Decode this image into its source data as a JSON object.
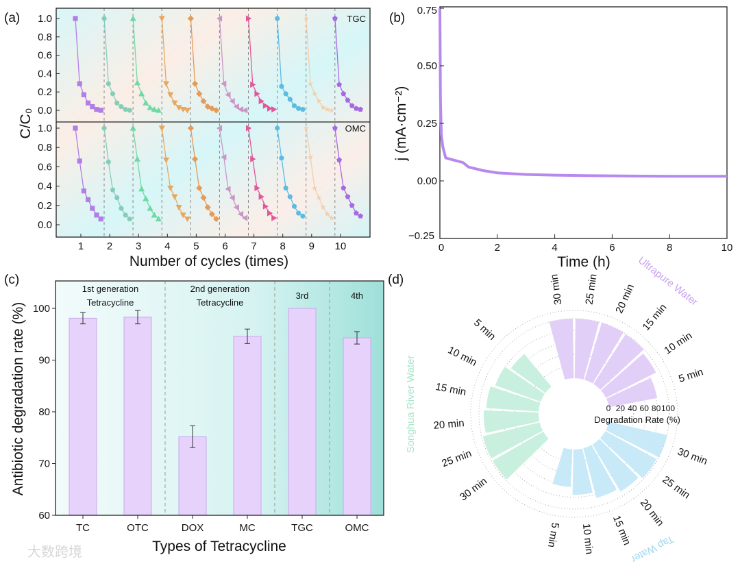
{
  "panels": {
    "a": "(a)",
    "b": "(b)",
    "c": "(c)",
    "d": "(d)"
  },
  "watermark": "大数跨境",
  "colors": {
    "cycles": [
      "#b07ee6",
      "#86cdb9",
      "#6fd8a4",
      "#e7a85e",
      "#e69a55",
      "#c996c6",
      "#e0579a",
      "#5bbbe3",
      "#f2cfa8",
      "#a768e6"
    ],
    "bar_purple": "#e6d2fa",
    "bar_edge": "#c9a8ee",
    "tap": "#c8e9f8",
    "songhua": "#c9f0df",
    "ultrapure": "#e2cff7"
  },
  "chart_data": [
    {
      "type": "line",
      "title": "",
      "xlabel": "Number of cycles (times)",
      "ylabel": "C/C₀",
      "xticks": [
        "1",
        "2",
        "3",
        "4",
        "5",
        "6",
        "7",
        "8",
        "9",
        "10"
      ],
      "yticks": [
        "0.0",
        "0.2",
        "0.4",
        "0.6",
        "0.8",
        "1.0"
      ],
      "ylim": [
        0,
        1.0
      ],
      "markers": [
        "square",
        "circle",
        "triangle-up",
        "triangle-down",
        "diamond",
        "triangle-left",
        "triangle-right",
        "hexagon",
        "star",
        "pentagon"
      ],
      "subplots": [
        {
          "name": "TGC",
          "cycles": [
            [
              1,
              0.29,
              0.17,
              0.08,
              0.04,
              0.01,
              0.0
            ],
            [
              1,
              0.29,
              0.18,
              0.08,
              0.04,
              0.01,
              0.0
            ],
            [
              1,
              0.3,
              0.18,
              0.08,
              0.03,
              0.01,
              0.0
            ],
            [
              1,
              0.29,
              0.17,
              0.08,
              0.03,
              0.01,
              0.0
            ],
            [
              1,
              0.29,
              0.18,
              0.1,
              0.04,
              0.02,
              0.0
            ],
            [
              1,
              0.29,
              0.17,
              0.1,
              0.04,
              0.01,
              0.0
            ],
            [
              1,
              0.28,
              0.18,
              0.1,
              0.05,
              0.02,
              0.01
            ],
            [
              1,
              0.26,
              0.18,
              0.12,
              0.05,
              0.02,
              0.01
            ],
            [
              1,
              0.29,
              0.18,
              0.1,
              0.03,
              0.01,
              0.0
            ],
            [
              1,
              0.28,
              0.18,
              0.11,
              0.05,
              0.02,
              0.01
            ]
          ]
        },
        {
          "name": "OMC",
          "cycles": [
            [
              1,
              0.66,
              0.35,
              0.26,
              0.17,
              0.1,
              0.06
            ],
            [
              1,
              0.65,
              0.36,
              0.28,
              0.17,
              0.1,
              0.06
            ],
            [
              1,
              0.68,
              0.37,
              0.27,
              0.17,
              0.1,
              0.06
            ],
            [
              1,
              0.67,
              0.38,
              0.29,
              0.18,
              0.1,
              0.06
            ],
            [
              1,
              0.68,
              0.38,
              0.28,
              0.18,
              0.11,
              0.06
            ],
            [
              1,
              0.7,
              0.37,
              0.28,
              0.18,
              0.11,
              0.07
            ],
            [
              1,
              0.68,
              0.38,
              0.29,
              0.19,
              0.12,
              0.07
            ],
            [
              1,
              0.69,
              0.38,
              0.29,
              0.19,
              0.12,
              0.09
            ],
            [
              1,
              0.7,
              0.38,
              0.28,
              0.18,
              0.11,
              0.07
            ],
            [
              1,
              0.67,
              0.38,
              0.29,
              0.2,
              0.12,
              0.09
            ]
          ]
        }
      ]
    },
    {
      "type": "line",
      "title": "",
      "xlabel": "Time (h)",
      "ylabel": "j (mA·cm⁻²)",
      "xlim": [
        0,
        10
      ],
      "ylim": [
        -0.25,
        0.75
      ],
      "xticks": [
        "0",
        "2",
        "4",
        "6",
        "8",
        "10"
      ],
      "yticks": [
        "−0.25",
        "0.00",
        "0.25",
        "0.50",
        "0.75"
      ],
      "x": [
        0,
        0.02,
        0.05,
        0.1,
        0.2,
        0.5,
        0.8,
        1.0,
        1.5,
        2,
        3,
        4,
        5,
        6,
        7,
        8,
        9,
        10
      ],
      "y": [
        0.75,
        0.35,
        0.2,
        0.15,
        0.1,
        0.09,
        0.08,
        0.06,
        0.045,
        0.035,
        0.028,
        0.025,
        0.023,
        0.022,
        0.021,
        0.02,
        0.02,
        0.02
      ]
    },
    {
      "type": "bar",
      "title": "",
      "xlabel": "Types of Tetracycline",
      "ylabel": "Antibiotic degradation rate (%)",
      "ylim": [
        60,
        105
      ],
      "yticks": [
        "60",
        "70",
        "80",
        "90",
        "100"
      ],
      "categories": [
        "TC",
        "OTC",
        "DOX",
        "MC",
        "TGC",
        "OMC"
      ],
      "values": [
        98.1,
        98.3,
        75.2,
        94.6,
        100,
        94.3
      ],
      "errors": [
        1.1,
        1.3,
        2.1,
        1.4,
        0,
        1.2
      ],
      "groups": [
        {
          "line1": "1st generation",
          "line2": "Tetracycline"
        },
        {
          "line1": "2nd generation",
          "line2": "Tetracycline"
        },
        {
          "line1": "3rd",
          "line2": ""
        },
        {
          "line1": "4th",
          "line2": ""
        }
      ]
    },
    {
      "type": "bar",
      "subtype": "polar",
      "title": "",
      "radial_label": "Degradation Rate (%)",
      "radial_ticks": [
        "0",
        "20",
        "40",
        "60",
        "80",
        "100"
      ],
      "rlim": [
        0,
        100
      ],
      "categories": [
        "5 min",
        "10 min",
        "15 min",
        "20 min",
        "25 min",
        "30 min"
      ],
      "series": [
        {
          "name": "Ultrapure Water",
          "values": [
            82,
            94,
            99,
            100,
            100,
            100
          ]
        },
        {
          "name": "Tap Water",
          "values": [
            63,
            76,
            86,
            92,
            98,
            100
          ]
        },
        {
          "name": "Songhua River Water",
          "values": [
            71,
            81,
            88,
            92,
            98,
            98
          ]
        }
      ]
    }
  ]
}
